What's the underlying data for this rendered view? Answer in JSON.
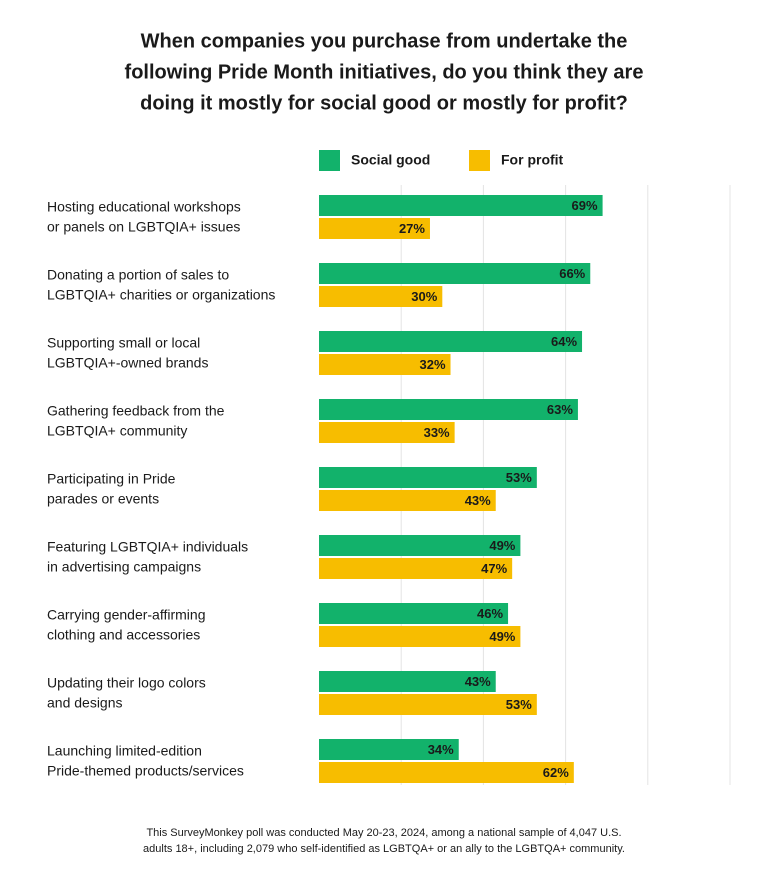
{
  "chart_data": {
    "type": "hbar",
    "title": [
      "When companies you purchase from undertake the",
      "following Pride Month initiatives, do you think they are",
      "doing it mostly for social good or mostly for profit?"
    ],
    "categories": [
      [
        "Hosting educational workshops",
        "or panels on LGBTQIA+ issues"
      ],
      [
        "Donating a portion of sales to",
        "LGBTQIA+ charities or organizations"
      ],
      [
        "Supporting small or local",
        "LGBTQIA+-owned brands"
      ],
      [
        "Gathering feedback from the",
        "LGBTQIA+ community"
      ],
      [
        "Participating in Pride",
        "parades or events"
      ],
      [
        "Featuring LGBTQIA+ individuals",
        "in advertising campaigns"
      ],
      [
        "Carrying gender-affirming",
        "clothing and accessories"
      ],
      [
        "Updating their logo colors",
        "and designs"
      ],
      [
        "Launching limited-edition",
        "Pride-themed products/services"
      ]
    ],
    "series": [
      {
        "name": "Social good",
        "color": "#12b26b",
        "values": [
          69,
          66,
          64,
          63,
          53,
          49,
          46,
          43,
          34
        ],
        "value_labels": [
          "69%",
          "66%",
          "64%",
          "63%",
          "53%",
          "49%",
          "46%",
          "43%",
          "34%"
        ]
      },
      {
        "name": "For profit",
        "color": "#f7bd00",
        "values": [
          27,
          30,
          32,
          33,
          43,
          47,
          49,
          53,
          62
        ],
        "value_labels": [
          "27%",
          "30%",
          "32%",
          "33%",
          "43%",
          "47%",
          "49%",
          "53%",
          "62%"
        ]
      }
    ],
    "xlim": [
      0,
      100
    ],
    "xticks": [
      20,
      40,
      60,
      80,
      100
    ],
    "grid": true,
    "footnote": [
      "This SurveyMonkey poll was conducted May 20-23, 2024, among a national sample of 4,047 U.S.",
      "adults 18+, including 2,079 who self-identified as LGBTQA+ or an ally to the LGBTQA+ community."
    ]
  }
}
